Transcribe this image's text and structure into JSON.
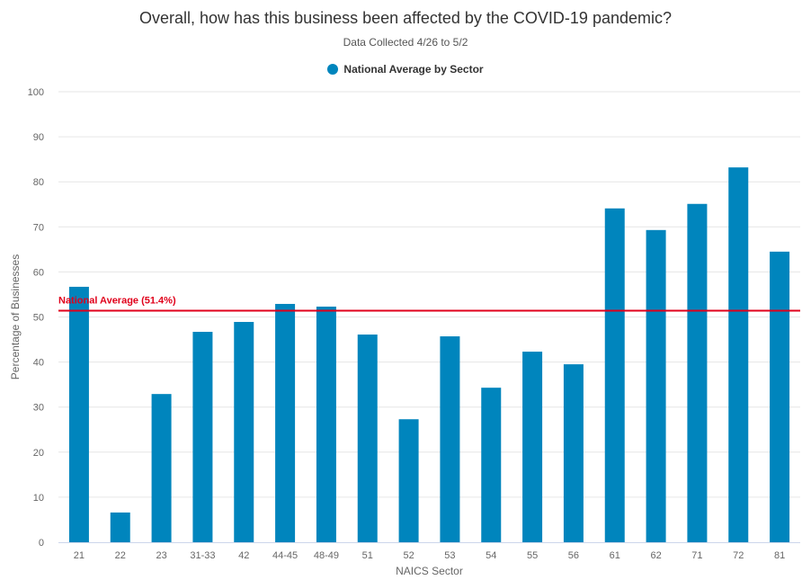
{
  "chart_data": {
    "type": "bar",
    "title": "Overall, how has this business been affected by the COVID-19 pandemic?",
    "subtitle": "Data Collected 4/26 to 5/2",
    "xlabel": "NAICS Sector",
    "ylabel": "Percentage of Businesses",
    "ylim": [
      0,
      100
    ],
    "yticks": [
      0,
      10,
      20,
      30,
      40,
      50,
      60,
      70,
      80,
      90,
      100
    ],
    "grid": true,
    "legend_position": "top-center",
    "categories": [
      "21",
      "22",
      "23",
      "31-33",
      "42",
      "44-45",
      "48-49",
      "51",
      "52",
      "53",
      "54",
      "55",
      "56",
      "61",
      "62",
      "71",
      "72",
      "81"
    ],
    "series": [
      {
        "name": "National Average by Sector",
        "color": "#0085bd",
        "values": [
          56.7,
          6.6,
          32.9,
          46.7,
          48.9,
          52.9,
          52.3,
          46.1,
          27.3,
          45.7,
          34.3,
          42.3,
          39.5,
          74.1,
          69.3,
          75.1,
          83.2,
          64.5
        ]
      }
    ],
    "reference_line": {
      "label": "National Average (51.4%)",
      "value": 51.4,
      "color": "#e0001b"
    }
  }
}
